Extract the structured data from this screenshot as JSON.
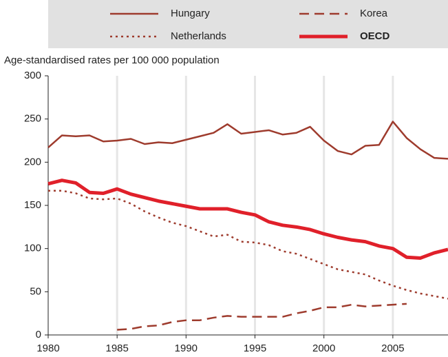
{
  "chart_data": {
    "type": "line",
    "ylabel": "Age-standardised rates per 100 000 population",
    "x": [
      1980,
      1981,
      1982,
      1983,
      1984,
      1985,
      1986,
      1987,
      1988,
      1989,
      1990,
      1991,
      1992,
      1993,
      1994,
      1995,
      1996,
      1997,
      1998,
      1999,
      2000,
      2001,
      2002,
      2003,
      2004,
      2005,
      2006,
      2007,
      2008,
      2009
    ],
    "series": [
      {
        "name": "Hungary",
        "color": "#9e3b2d",
        "style": "solid",
        "width": 2.5,
        "values": [
          217,
          231,
          230,
          231,
          224,
          225,
          227,
          221,
          223,
          222,
          226,
          230,
          234,
          244,
          233,
          235,
          237,
          232,
          234,
          241,
          225,
          213,
          209,
          219,
          220,
          247,
          228,
          215,
          205,
          204
        ]
      },
      {
        "name": "Korea",
        "color": "#9e3b2d",
        "style": "dashed",
        "width": 2.5,
        "values": [
          null,
          null,
          null,
          null,
          null,
          6,
          7,
          10,
          11,
          15,
          17,
          17,
          20,
          22,
          21,
          21,
          21,
          21,
          25,
          28,
          32,
          32,
          35,
          33,
          34,
          35,
          36,
          null,
          null,
          null
        ]
      },
      {
        "name": "Netherlands",
        "color": "#9e3b2d",
        "style": "dotted",
        "width": 2.5,
        "values": [
          167,
          167,
          164,
          158,
          157,
          158,
          152,
          143,
          136,
          130,
          126,
          120,
          114,
          116,
          108,
          107,
          104,
          97,
          94,
          88,
          82,
          76,
          73,
          70,
          63,
          57,
          52,
          48,
          45,
          42
        ]
      },
      {
        "name": "OECD",
        "color": "#e0202a",
        "style": "solid",
        "width": 5,
        "values": [
          175,
          179,
          176,
          165,
          164,
          169,
          163,
          159,
          155,
          152,
          149,
          146,
          146,
          146,
          142,
          139,
          131,
          127,
          125,
          122,
          117,
          113,
          110,
          108,
          103,
          100,
          90,
          89,
          95,
          99
        ]
      }
    ],
    "xlim": [
      1980,
      2009
    ],
    "xticks": [
      1980,
      1985,
      1990,
      1995,
      2000,
      2005
    ],
    "ylim": [
      0,
      300
    ],
    "yticks": [
      0,
      50,
      100,
      150,
      200,
      250,
      300
    ],
    "grid": true
  }
}
